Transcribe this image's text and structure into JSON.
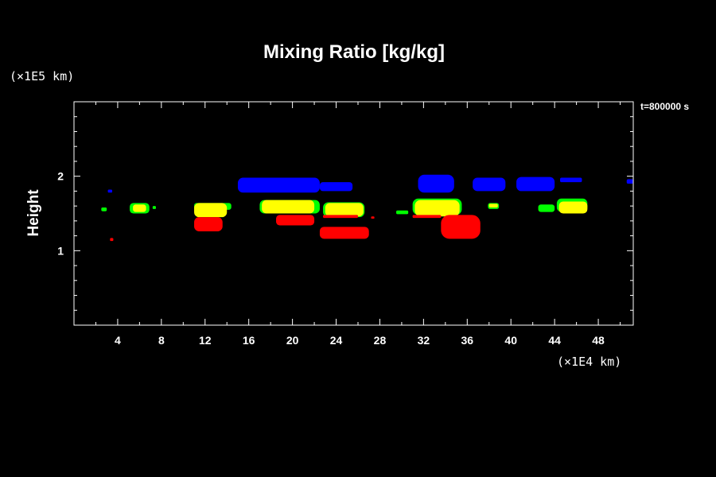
{
  "chart_data": {
    "type": "heatmap",
    "title": "Mixing Ratio [kg/kg]",
    "ylabel": "Height",
    "y_unit": "(×1E5 km)",
    "x_unit": "(×1E4 km)",
    "time_label": "t=800000 s",
    "xlim": [
      0,
      51.2
    ],
    "ylim": [
      0,
      3
    ],
    "x_ticks": [
      "4",
      "8",
      "12",
      "16",
      "20",
      "24",
      "28",
      "32",
      "36",
      "40",
      "44",
      "48"
    ],
    "y_ticks": [
      "1",
      "2"
    ],
    "colors": {
      "blue": "#0000ff",
      "yellow": "#ffff00",
      "green": "#00ff00",
      "red": "#ff0000",
      "axis": "#ffffff",
      "background": "#000000"
    },
    "regions": [
      {
        "color": "blue",
        "x": [
          15.0,
          22.5
        ],
        "y": [
          1.78,
          1.98
        ]
      },
      {
        "color": "blue",
        "x": [
          22.5,
          25.5
        ],
        "y": [
          1.8,
          1.92
        ]
      },
      {
        "color": "blue",
        "x": [
          31.5,
          34.8
        ],
        "y": [
          1.78,
          2.02
        ]
      },
      {
        "color": "blue",
        "x": [
          36.5,
          39.5
        ],
        "y": [
          1.8,
          1.98
        ]
      },
      {
        "color": "blue",
        "x": [
          40.5,
          44.0
        ],
        "y": [
          1.8,
          1.99
        ]
      },
      {
        "color": "blue",
        "x": [
          44.5,
          46.5
        ],
        "y": [
          1.92,
          1.98
        ]
      },
      {
        "color": "blue",
        "x": [
          50.6,
          51.2
        ],
        "y": [
          1.9,
          1.96
        ]
      },
      {
        "color": "blue",
        "x": [
          3.1,
          3.5
        ],
        "y": [
          1.78,
          1.82
        ]
      },
      {
        "color": "green",
        "x": [
          2.5,
          3.0
        ],
        "y": [
          1.53,
          1.58
        ]
      },
      {
        "color": "green",
        "x": [
          5.1,
          6.9
        ],
        "y": [
          1.5,
          1.64
        ]
      },
      {
        "color": "green",
        "x": [
          7.2,
          7.5
        ],
        "y": [
          1.56,
          1.6
        ]
      },
      {
        "color": "yellow",
        "x": [
          5.4,
          6.6
        ],
        "y": [
          1.52,
          1.62
        ]
      },
      {
        "color": "green",
        "x": [
          11.0,
          14.4
        ],
        "y": [
          1.55,
          1.64
        ]
      },
      {
        "color": "yellow",
        "x": [
          11.0,
          14.0
        ],
        "y": [
          1.45,
          1.64
        ]
      },
      {
        "color": "red",
        "x": [
          11.0,
          13.6
        ],
        "y": [
          1.26,
          1.45
        ]
      },
      {
        "color": "green",
        "x": [
          17.0,
          22.5
        ],
        "y": [
          1.5,
          1.68
        ]
      },
      {
        "color": "yellow",
        "x": [
          17.2,
          22.0
        ],
        "y": [
          1.5,
          1.68
        ]
      },
      {
        "color": "red",
        "x": [
          18.5,
          22.0
        ],
        "y": [
          1.34,
          1.48
        ]
      },
      {
        "color": "green",
        "x": [
          22.8,
          26.6
        ],
        "y": [
          1.45,
          1.65
        ]
      },
      {
        "color": "yellow",
        "x": [
          23.0,
          26.5
        ],
        "y": [
          1.46,
          1.64
        ]
      },
      {
        "color": "red",
        "x": [
          22.8,
          26.0
        ],
        "y": [
          1.44,
          1.48
        ]
      },
      {
        "color": "red",
        "x": [
          22.5,
          27.0
        ],
        "y": [
          1.16,
          1.32
        ]
      },
      {
        "color": "green",
        "x": [
          29.5,
          30.6
        ],
        "y": [
          1.49,
          1.54
        ]
      },
      {
        "color": "green",
        "x": [
          31.0,
          35.5
        ],
        "y": [
          1.48,
          1.7
        ]
      },
      {
        "color": "yellow",
        "x": [
          31.2,
          35.3
        ],
        "y": [
          1.46,
          1.68
        ]
      },
      {
        "color": "red",
        "x": [
          31.0,
          33.6
        ],
        "y": [
          1.44,
          1.48
        ]
      },
      {
        "color": "red",
        "x": [
          33.6,
          37.2
        ],
        "y": [
          1.16,
          1.48
        ]
      },
      {
        "color": "green",
        "x": [
          37.9,
          38.9
        ],
        "y": [
          1.56,
          1.64
        ]
      },
      {
        "color": "yellow",
        "x": [
          38.0,
          38.8
        ],
        "y": [
          1.58,
          1.63
        ]
      },
      {
        "color": "green",
        "x": [
          42.5,
          44.0
        ],
        "y": [
          1.52,
          1.62
        ]
      },
      {
        "color": "green",
        "x": [
          44.2,
          47.0
        ],
        "y": [
          1.52,
          1.7
        ]
      },
      {
        "color": "yellow",
        "x": [
          44.4,
          47.0
        ],
        "y": [
          1.5,
          1.66
        ]
      },
      {
        "color": "red",
        "x": [
          3.3,
          3.6
        ],
        "y": [
          1.13,
          1.17
        ]
      },
      {
        "color": "red",
        "x": [
          27.2,
          27.5
        ],
        "y": [
          1.43,
          1.46
        ]
      }
    ]
  }
}
